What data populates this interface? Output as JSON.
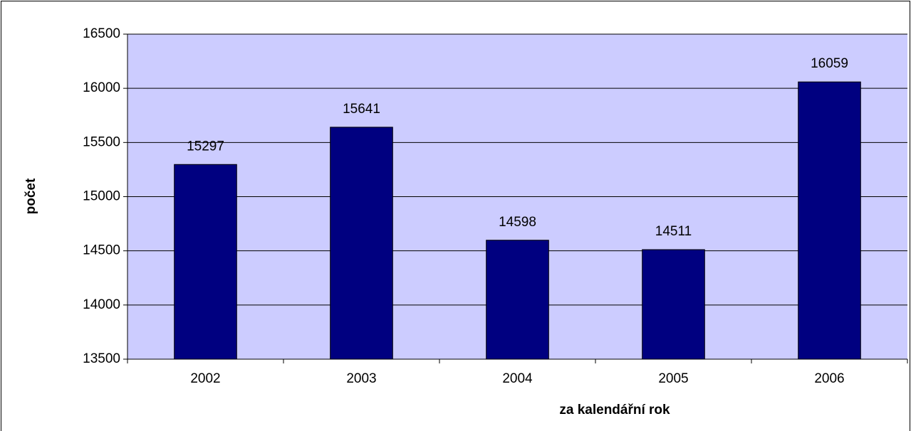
{
  "chart_data": {
    "type": "bar",
    "categories": [
      "2002",
      "2003",
      "2004",
      "2005",
      "2006"
    ],
    "values": [
      15297,
      15641,
      14598,
      14511,
      16059
    ],
    "color": "#000080",
    "ylim": [
      13500,
      16500
    ],
    "yticks": [
      13500,
      14000,
      14500,
      15000,
      15500,
      16000,
      16500
    ],
    "grid": true,
    "y_label": "počet",
    "x_label": "za kalendářní rok"
  }
}
